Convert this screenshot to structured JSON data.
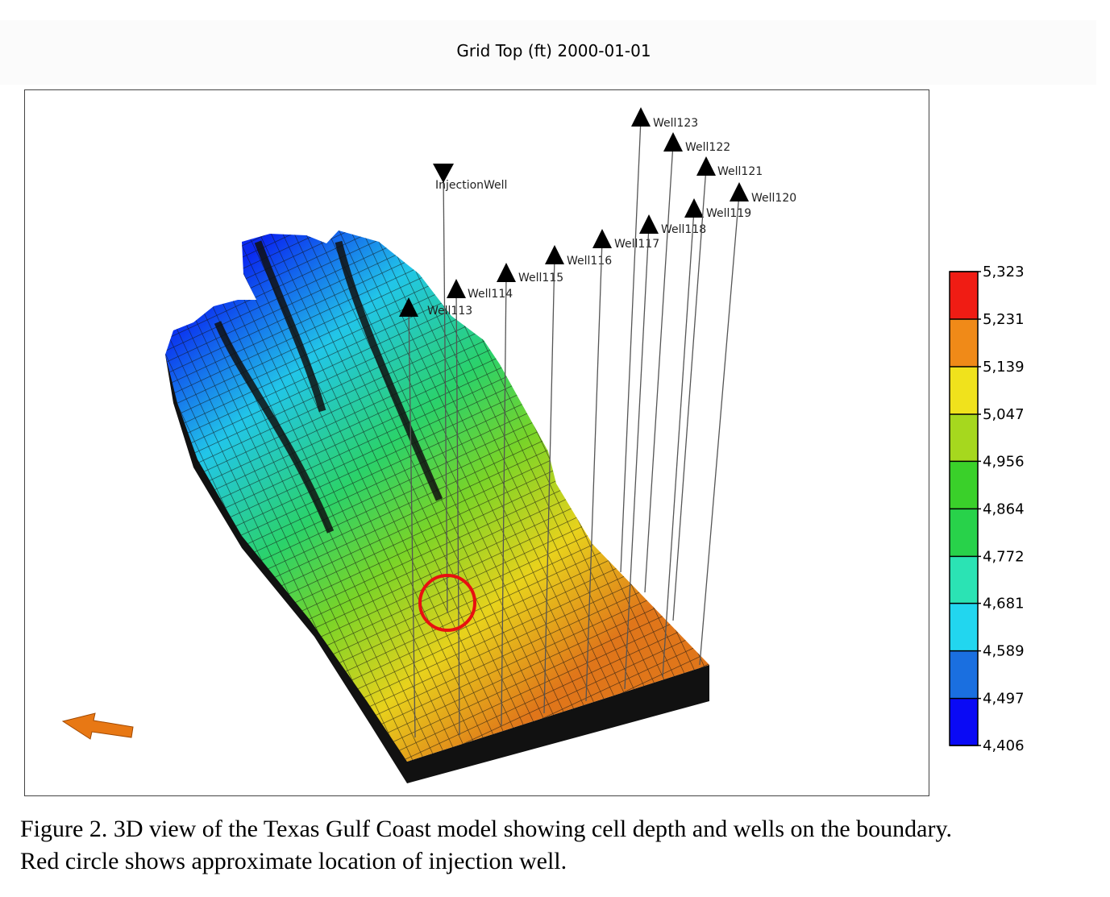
{
  "figure": {
    "title": "Grid Top (ft) 2000-01-01",
    "wells": [
      "InjectionWell",
      "Well113",
      "Well114",
      "Well115",
      "Well116",
      "Well117",
      "Well118",
      "Well119",
      "Well120",
      "Well121",
      "Well122",
      "Well123"
    ],
    "colorbar": {
      "ticks": [
        {
          "value": 4406,
          "label": "4,406"
        },
        {
          "value": 4497,
          "label": "4,497"
        },
        {
          "value": 4589,
          "label": "4,589"
        },
        {
          "value": 4681,
          "label": "4,681"
        },
        {
          "value": 4772,
          "label": "4,772"
        },
        {
          "value": 4864,
          "label": "4,864"
        },
        {
          "value": 4956,
          "label": "4,956"
        },
        {
          "value": 5047,
          "label": "5,047"
        },
        {
          "value": 5139,
          "label": "5,139"
        },
        {
          "value": 5231,
          "label": "5,231"
        },
        {
          "value": 5323,
          "label": "5,323"
        }
      ],
      "colors": [
        "#0a0af5",
        "#1a6fe0",
        "#22d6ef",
        "#2be3b4",
        "#28d24a",
        "#3ad02a",
        "#a6d81e",
        "#f0e21c",
        "#f08a18",
        "#f01c14"
      ]
    }
  },
  "caption": {
    "lines": [
      "Figure 2. 3D view of the Texas Gulf Coast model showing cell depth and wells on the boundary.",
      "Red circle shows approximate location of injection well."
    ]
  }
}
